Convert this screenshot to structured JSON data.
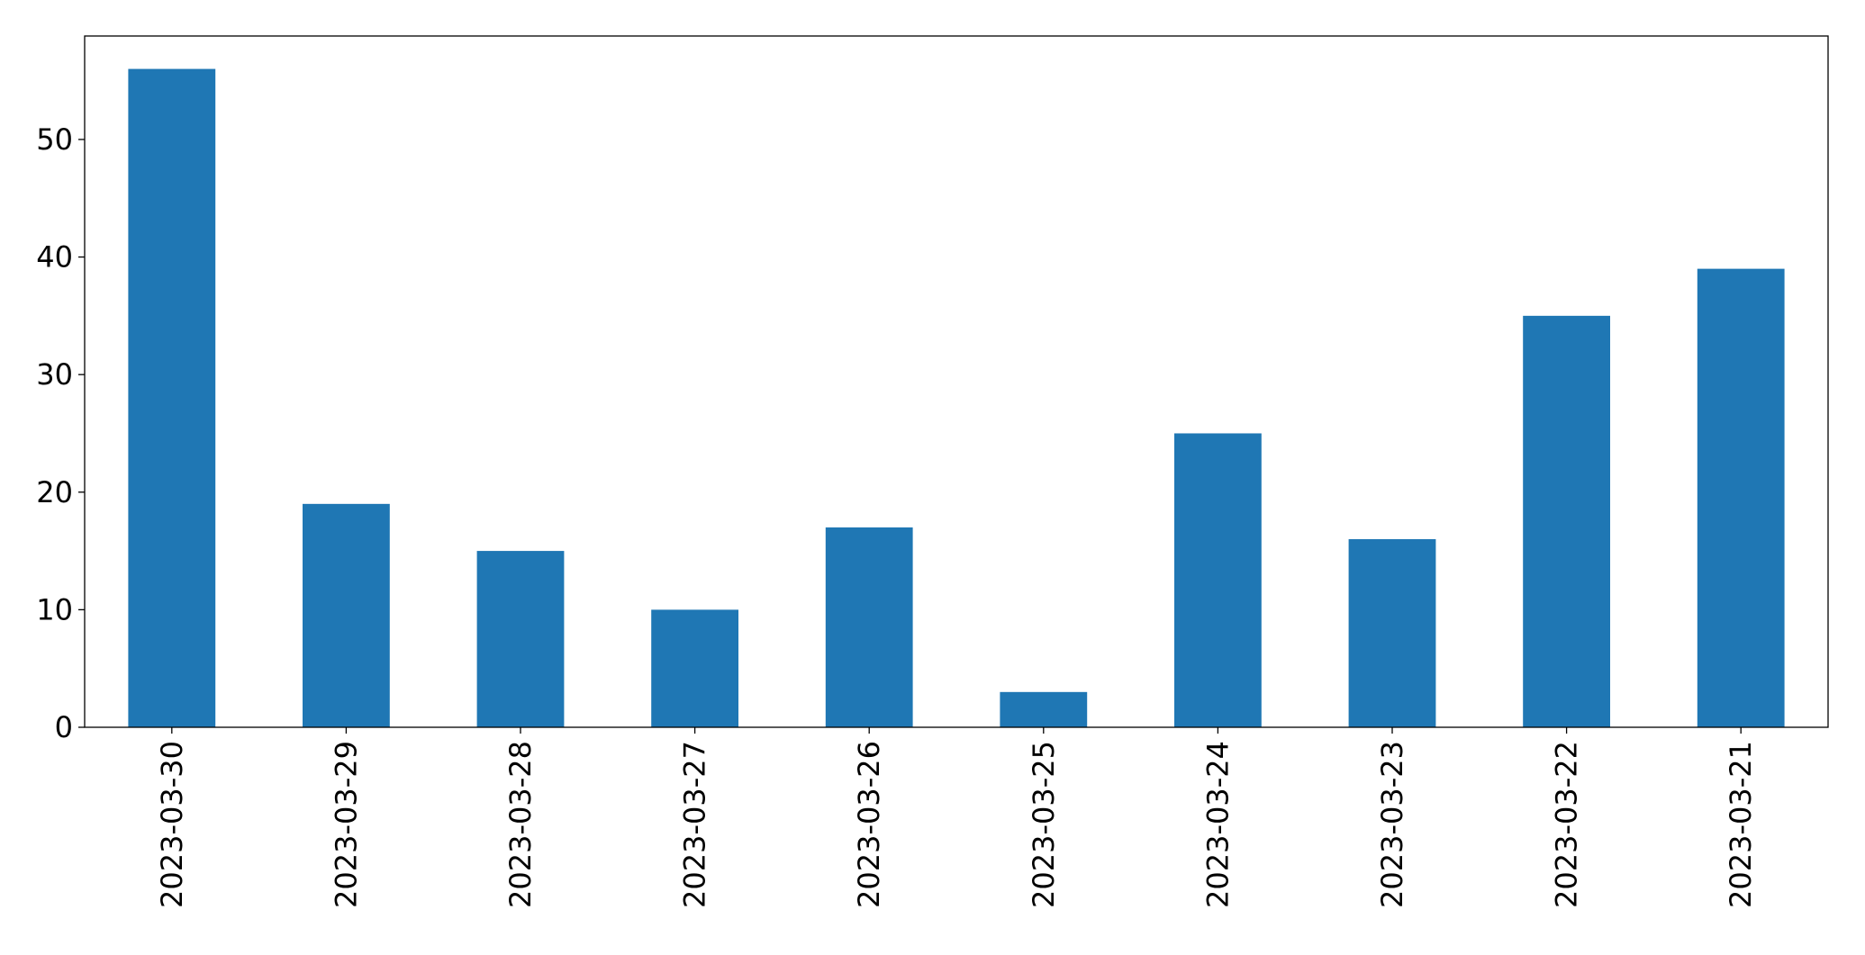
{
  "chart_data": {
    "type": "bar",
    "categories": [
      "2023-03-30",
      "2023-03-29",
      "2023-03-28",
      "2023-03-27",
      "2023-03-26",
      "2023-03-25",
      "2023-03-24",
      "2023-03-23",
      "2023-03-22",
      "2023-03-21"
    ],
    "values": [
      56,
      19,
      15,
      10,
      17,
      3,
      25,
      16,
      35,
      39
    ],
    "color": "#1f77b4",
    "ylim": [
      0,
      58.8
    ],
    "yticks": [
      0,
      10,
      20,
      30,
      40,
      50
    ],
    "grid": false
  }
}
